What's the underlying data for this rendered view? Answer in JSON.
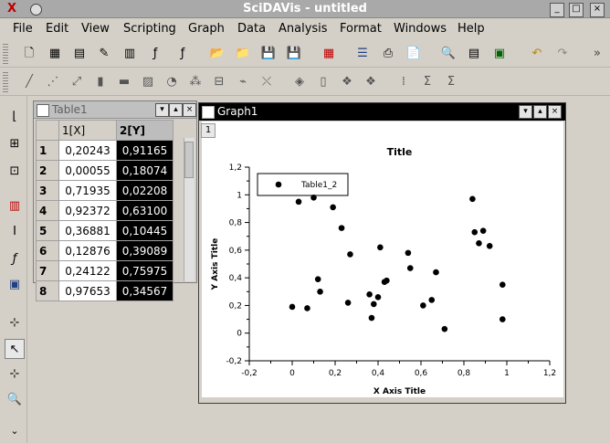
{
  "window": {
    "title": "SciDAVis - untitled"
  },
  "menu": [
    "File",
    "Edit",
    "View",
    "Scripting",
    "Graph",
    "Data",
    "Analysis",
    "Format",
    "Windows",
    "Help"
  ],
  "table": {
    "title": "Table1",
    "col_x": "1[X]",
    "col_y": "2[Y]",
    "rows": [
      {
        "n": "1",
        "x": "0,20243",
        "y": "0,91165"
      },
      {
        "n": "2",
        "x": "0,00055",
        "y": "0,18074"
      },
      {
        "n": "3",
        "x": "0,71935",
        "y": "0,02208"
      },
      {
        "n": "4",
        "x": "0,92372",
        "y": "0,63100"
      },
      {
        "n": "5",
        "x": "0,36881",
        "y": "0,10445"
      },
      {
        "n": "6",
        "x": "0,12876",
        "y": "0,39089"
      },
      {
        "n": "7",
        "x": "0,24122",
        "y": "0,75975"
      },
      {
        "n": "8",
        "x": "0,97653",
        "y": "0,34567"
      }
    ]
  },
  "graph": {
    "title": "Graph1",
    "layer_label": "1"
  },
  "chart_data": {
    "type": "scatter",
    "title": "Title",
    "xlabel": "X Axis Title",
    "ylabel": "Y Axis Title",
    "xlim": [
      -0.2,
      1.2
    ],
    "ylim": [
      -0.2,
      1.2
    ],
    "x_ticks": [
      "-0,2",
      "0",
      "0,2",
      "0,4",
      "0,6",
      "0,8",
      "1",
      "1,2"
    ],
    "y_ticks": [
      "-0,2",
      "0",
      "0,2",
      "0,4",
      "0,6",
      "0,8",
      "1",
      "1,2"
    ],
    "legend": {
      "position": "top-left",
      "entries": [
        "Table1_2"
      ]
    },
    "series": [
      {
        "name": "Table1_2",
        "x": [
          0.0,
          0.03,
          0.07,
          0.1,
          0.12,
          0.13,
          0.19,
          0.23,
          0.26,
          0.27,
          0.36,
          0.37,
          0.38,
          0.4,
          0.41,
          0.43,
          0.44,
          0.54,
          0.55,
          0.61,
          0.65,
          0.67,
          0.71,
          0.84,
          0.85,
          0.87,
          0.89,
          0.92,
          0.98,
          0.98
        ],
        "y": [
          0.19,
          0.95,
          0.18,
          0.98,
          0.39,
          0.3,
          0.91,
          0.76,
          0.22,
          0.57,
          0.28,
          0.11,
          0.21,
          0.26,
          0.62,
          0.37,
          0.38,
          0.58,
          0.47,
          0.2,
          0.24,
          0.44,
          0.03,
          0.97,
          0.73,
          0.65,
          0.74,
          0.63,
          0.35,
          0.1
        ]
      }
    ]
  }
}
